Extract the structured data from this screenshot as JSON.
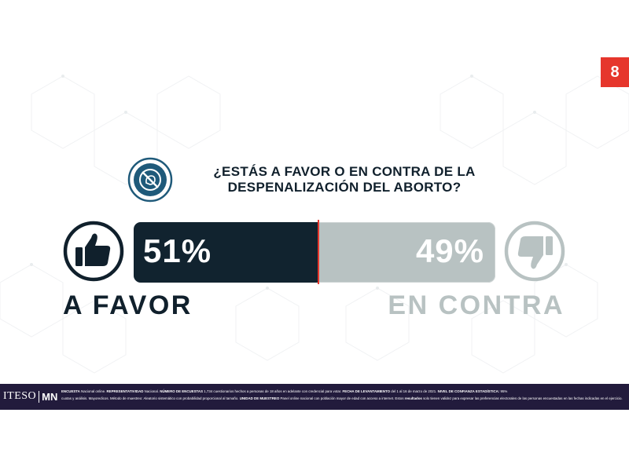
{
  "page": {
    "number": "8"
  },
  "question": {
    "line1": "¿ESTÁS A FAVOR O EN CONTRA DE LA",
    "line2": "DESPENALIZACIÓN DEL ABORTO?",
    "icon": "no-abortion-icon"
  },
  "chart_data": {
    "type": "bar",
    "orientation": "horizontal-stacked",
    "categories": [
      "A FAVOR",
      "EN CONTRA"
    ],
    "values": [
      51,
      49
    ],
    "labels": [
      "51%",
      "49%"
    ],
    "colors": [
      "#11232f",
      "#b8c2c2"
    ],
    "divider_color": "#e6362c",
    "icons": [
      "thumbs-up-icon",
      "thumbs-down-icon"
    ]
  },
  "footer": {
    "logo_left": "ITESO",
    "logo_right": "MN",
    "line1": [
      {
        "b": "ENCUESTA",
        "t": " Nacional online. "
      },
      {
        "b": "REPRESENTATIVIDAD",
        "t": " Nacional. "
      },
      {
        "b": "NÚMERO DE ENCUESTAS",
        "t": " 1,734 cuestionarios hechos a personas de 18 años en adelante con credencial para votar. "
      },
      {
        "b": "FECHA DE LEVANTAMIENTO",
        "t": " del 1 al 16 de marzo de 2021. "
      },
      {
        "b": "NIVEL DE CONFIANZA ESTADÍSTICA:",
        "t": " 95%"
      }
    ],
    "line2": [
      {
        "b": "",
        "t": "cuotas y análisis. Mayoredicos. Método de muestreo: Aleatorio sistemático con probabilidad proporcional al tamaño. "
      },
      {
        "b": "UNIDAD DE MUESTREO",
        "t": " Panel online nacional con población mayor de edad con acceso a internet. Estos "
      },
      {
        "b": "resultados",
        "t": " solo tienen validez para expresar las preferencias electorales de las personas encuestadas en las fechas indicadas en el ejercicio."
      }
    ]
  }
}
